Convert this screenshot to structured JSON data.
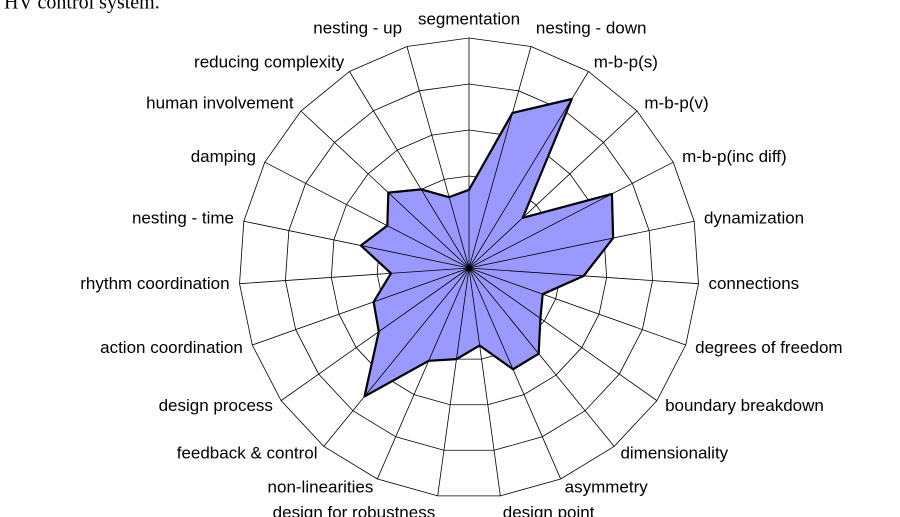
{
  "caption": "HV control system.",
  "chart_data": {
    "type": "radar",
    "categories": [
      "segmentation",
      "nesting - down",
      "m-b-p(s)",
      "m-b-p(v)",
      "m-b-p(inc diff)",
      "dynamization",
      "connections",
      "degrees of freedom",
      "boundary breakdown",
      "dimensionality",
      "asymmetry",
      "design point",
      "design for robustness",
      "non-linearities",
      "feedback & control",
      "design process",
      "action coordination",
      "rhythm coordination",
      "nesting - time",
      "damping",
      "human involvement",
      "reducing complexity",
      "nesting - up"
    ],
    "values": [
      1.7,
      3.5,
      4.3,
      1.6,
      3.5,
      3.2,
      2.5,
      1.7,
      1.9,
      2.4,
      2.4,
      1.7,
      2.0,
      2.2,
      3.6,
      2.4,
      2.2,
      1.7,
      2.4,
      2.0,
      2.4,
      2.0,
      1.6
    ],
    "color": "#9999ff",
    "rlim": [
      0,
      5
    ],
    "rticks": [
      1,
      2,
      3,
      4,
      5
    ],
    "grid": true
  }
}
